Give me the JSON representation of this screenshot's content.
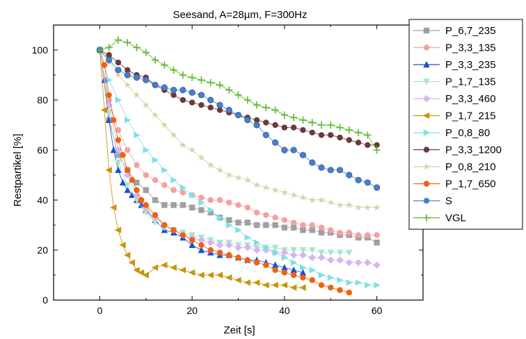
{
  "chart_data": {
    "type": "scatter",
    "title": "Seesand, A=28µm, F=300Hz",
    "xlabel": "Zeit [s]",
    "ylabel": "Restpartikel [%]",
    "xlim": [
      -10,
      70
    ],
    "ylim": [
      0,
      110
    ],
    "xticks": [
      0,
      20,
      40,
      60
    ],
    "yticks": [
      0,
      20,
      40,
      60,
      80,
      100
    ],
    "legend_position": "right, outside plot",
    "grid": false,
    "series": [
      {
        "name": "P_6,7_235",
        "color": "#a0a0a0",
        "marker": "square",
        "x": [
          0,
          2,
          4,
          6,
          8,
          10,
          12,
          14,
          16,
          18,
          20,
          22,
          24,
          26,
          28,
          30,
          32,
          34,
          36,
          38,
          40,
          42,
          44,
          46,
          48,
          50,
          52,
          54,
          56,
          58,
          60
        ],
        "y": [
          100,
          72,
          58,
          52,
          47,
          44,
          40,
          38,
          38,
          38,
          37,
          36,
          35,
          33,
          32,
          31,
          31,
          30,
          30,
          30,
          29,
          29,
          28,
          28,
          27,
          27,
          26,
          26,
          25,
          25,
          23
        ]
      },
      {
        "name": "P_3,3_135",
        "color": "#f4a0a0",
        "marker": "circle",
        "x": [
          0,
          2,
          4,
          6,
          8,
          10,
          12,
          14,
          16,
          18,
          20,
          22,
          24,
          26,
          28,
          30,
          32,
          34,
          36,
          38,
          40,
          42,
          44,
          46,
          48,
          50,
          52,
          54,
          56,
          58,
          60
        ],
        "y": [
          100,
          80,
          68,
          60,
          54,
          50,
          48,
          46,
          44,
          43,
          42,
          41,
          40,
          40,
          39,
          38,
          37,
          35,
          34,
          33,
          32,
          31,
          30,
          30,
          29,
          28,
          27,
          27,
          26,
          26,
          26
        ]
      },
      {
        "name": "P_3,3_235",
        "color": "#1f4fd0",
        "marker": "triangle-up",
        "x": [
          0,
          1,
          2,
          3,
          4,
          5,
          6,
          7,
          8,
          9,
          10,
          12,
          14,
          16,
          18,
          20,
          22,
          24,
          26,
          28,
          30,
          32,
          34,
          36,
          38,
          40,
          42,
          44
        ],
        "y": [
          100,
          88,
          72,
          60,
          52,
          47,
          44,
          42,
          40,
          38,
          36,
          32,
          28,
          27,
          25,
          22,
          20,
          19,
          18,
          18,
          17,
          16,
          16,
          15,
          14,
          13,
          12,
          11
        ]
      },
      {
        "name": "P_1,7_135",
        "color": "#a8e6c8",
        "marker": "triangle-down",
        "x": [
          0,
          2,
          4,
          6,
          8,
          10,
          12,
          14,
          16,
          18,
          20,
          22,
          24,
          26,
          28,
          30,
          32,
          34,
          36,
          38,
          40,
          42,
          44,
          46,
          48,
          50,
          52,
          54
        ],
        "y": [
          100,
          75,
          55,
          46,
          40,
          35,
          31,
          29,
          28,
          27,
          26,
          25,
          24,
          23,
          23,
          22,
          22,
          21,
          21,
          21,
          20,
          20,
          20,
          20,
          19,
          19,
          19,
          19
        ]
      },
      {
        "name": "P_3,3_460",
        "color": "#d8b4f0",
        "marker": "diamond",
        "x": [
          0,
          2,
          4,
          6,
          8,
          10,
          12,
          14,
          16,
          18,
          20,
          22,
          24,
          26,
          28,
          30,
          32,
          34,
          36,
          38,
          40,
          42,
          44,
          46,
          48,
          50,
          52,
          54,
          56,
          58,
          60
        ],
        "y": [
          100,
          78,
          60,
          50,
          42,
          37,
          33,
          30,
          28,
          26,
          25,
          24,
          23,
          22,
          22,
          21,
          21,
          20,
          20,
          19,
          19,
          18,
          18,
          17,
          17,
          16,
          16,
          15,
          15,
          15,
          14
        ]
      },
      {
        "name": "P_1,7_215",
        "color": "#c8940a",
        "marker": "triangle-left",
        "x": [
          0,
          1,
          2,
          3,
          4,
          5,
          6,
          7,
          8,
          9,
          10,
          12,
          14,
          16,
          18,
          20,
          22,
          24,
          26,
          28,
          30,
          32,
          34,
          36,
          38,
          40,
          42,
          44
        ],
        "y": [
          100,
          76,
          52,
          37,
          28,
          22,
          18,
          15,
          12,
          11,
          10,
          13,
          14,
          13,
          12,
          11,
          10,
          10,
          10,
          9,
          8,
          7,
          7,
          6,
          6,
          6,
          5,
          5
        ]
      },
      {
        "name": "P_0,8_80",
        "color": "#7ee0e8",
        "marker": "triangle-right",
        "x": [
          0,
          2,
          4,
          6,
          8,
          10,
          12,
          14,
          16,
          18,
          20,
          22,
          24,
          26,
          28,
          30,
          32,
          34,
          36,
          38,
          40,
          42,
          44,
          46,
          48,
          50,
          52,
          54,
          56,
          58,
          60
        ],
        "y": [
          100,
          88,
          80,
          72,
          66,
          60,
          56,
          52,
          48,
          45,
          42,
          39,
          36,
          33,
          30,
          28,
          25,
          23,
          21,
          19,
          17,
          15,
          13,
          12,
          10,
          9,
          8,
          7,
          7,
          6,
          6
        ]
      },
      {
        "name": "P_3,3_1200",
        "color": "#6b3a3a",
        "marker": "circle",
        "x": [
          0,
          2,
          4,
          6,
          8,
          10,
          12,
          14,
          16,
          18,
          20,
          22,
          24,
          26,
          28,
          30,
          32,
          34,
          36,
          38,
          40,
          42,
          44,
          46,
          48,
          50,
          52,
          54,
          56,
          58,
          60
        ],
        "y": [
          100,
          98,
          95,
          92,
          90,
          89,
          86,
          84,
          82,
          80,
          79,
          78,
          77,
          76,
          75,
          74,
          73,
          72,
          71,
          70,
          69,
          69,
          68,
          67,
          66,
          66,
          65,
          64,
          63,
          62,
          62
        ]
      },
      {
        "name": "P_0,8_210",
        "color": "#d8d0a8",
        "marker": "star",
        "x": [
          0,
          2,
          4,
          6,
          8,
          10,
          12,
          14,
          16,
          18,
          20,
          22,
          24,
          26,
          28,
          30,
          32,
          34,
          36,
          38,
          40,
          42,
          44,
          46,
          48,
          50,
          52,
          54,
          56,
          58,
          60
        ],
        "y": [
          100,
          95,
          90,
          86,
          82,
          78,
          74,
          70,
          66,
          62,
          60,
          57,
          54,
          52,
          50,
          49,
          48,
          46,
          45,
          44,
          43,
          42,
          41,
          40,
          40,
          39,
          38,
          38,
          37,
          37,
          37
        ]
      },
      {
        "name": "P_1,7_650",
        "color": "#f06010",
        "marker": "circle",
        "x": [
          0,
          1,
          2,
          3,
          4,
          5,
          6,
          7,
          8,
          9,
          10,
          12,
          14,
          16,
          18,
          20,
          22,
          24,
          26,
          28,
          30,
          32,
          34,
          36,
          38,
          40,
          42,
          44,
          46,
          48,
          50,
          52,
          54
        ],
        "y": [
          100,
          94,
          82,
          72,
          64,
          58,
          52,
          48,
          44,
          40,
          38,
          34,
          30,
          28,
          26,
          24,
          22,
          20,
          19,
          18,
          17,
          16,
          15,
          14,
          12,
          11,
          10,
          9,
          8,
          6,
          5,
          4,
          3
        ]
      },
      {
        "name": "S",
        "color": "#4a7ec8",
        "marker": "circle",
        "x": [
          0,
          2,
          4,
          6,
          8,
          10,
          12,
          14,
          16,
          18,
          20,
          22,
          24,
          26,
          28,
          30,
          32,
          34,
          36,
          38,
          40,
          42,
          44,
          46,
          48,
          50,
          52,
          54,
          56,
          58,
          60
        ],
        "y": [
          100,
          96,
          92,
          90,
          89,
          88,
          86,
          85,
          84,
          84,
          83,
          82,
          80,
          78,
          76,
          74,
          72,
          70,
          66,
          63,
          60,
          60,
          58,
          55,
          53,
          52,
          52,
          50,
          48,
          47,
          45
        ]
      },
      {
        "name": "VGL",
        "color": "#5ab82a",
        "marker": "plus",
        "x": [
          0,
          2,
          4,
          6,
          8,
          10,
          12,
          14,
          16,
          18,
          20,
          22,
          24,
          26,
          28,
          30,
          32,
          34,
          36,
          38,
          40,
          42,
          44,
          46,
          48,
          50,
          52,
          54,
          56,
          58,
          60
        ],
        "y": [
          100,
          101,
          104,
          103,
          101,
          99,
          96,
          94,
          92,
          90,
          89,
          88,
          87,
          86,
          84,
          82,
          80,
          78,
          77,
          76,
          74,
          73,
          72,
          71,
          70,
          70,
          69,
          68,
          67,
          66,
          60
        ]
      }
    ]
  }
}
